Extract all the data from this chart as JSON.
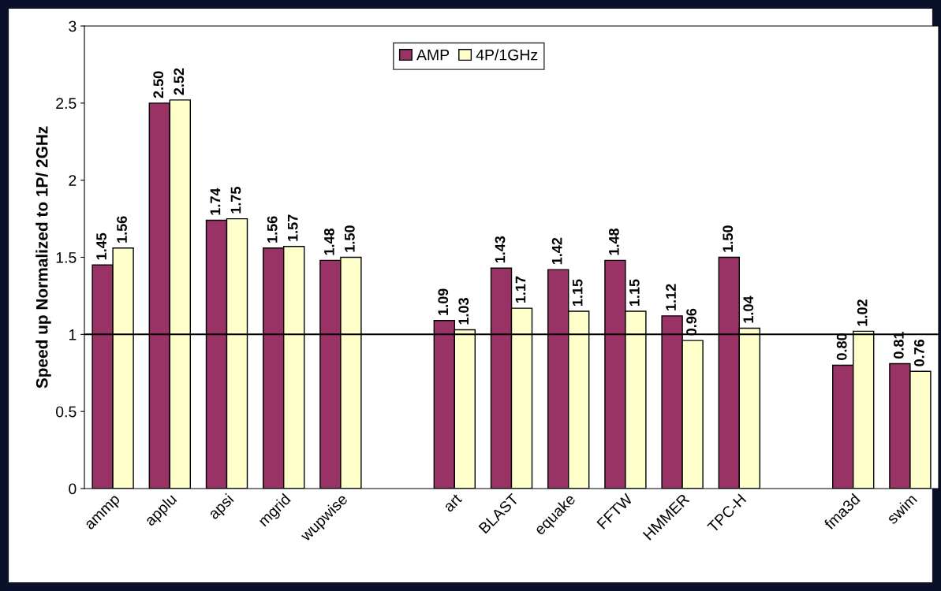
{
  "chart_data": {
    "type": "bar",
    "ylabel": "Speed up Normalized to 1P/ 2GHz",
    "categories": [
      "ammp",
      "applu",
      "apsi",
      "mgrid",
      "wupwise",
      null,
      "art",
      "BLAST",
      "equake",
      "FFTW",
      "HMMER",
      "TPC-H",
      null,
      "fma3d",
      "swim"
    ],
    "series": [
      {
        "name": "AMP",
        "color": "#993366",
        "values": [
          1.45,
          2.5,
          1.74,
          1.56,
          1.48,
          null,
          1.09,
          1.43,
          1.42,
          1.48,
          1.12,
          1.5,
          null,
          0.8,
          0.81
        ],
        "value_labels": [
          "1.45",
          "2.50",
          "1.74",
          "1.56",
          "1.48",
          null,
          "1.09",
          "1.43",
          "1.42",
          "1.48",
          "1.12",
          "1.50",
          null,
          "0.80",
          "0.81"
        ]
      },
      {
        "name": "4P/1GHz",
        "color": "#ffffcc",
        "values": [
          1.56,
          2.52,
          1.75,
          1.57,
          1.5,
          null,
          1.03,
          1.17,
          1.15,
          1.15,
          0.96,
          1.04,
          null,
          1.02,
          0.76
        ],
        "value_labels": [
          "1.56",
          "2.52",
          "1.75",
          "1.57",
          "1.50",
          null,
          "1.03",
          "1.17",
          "1.15",
          "1.15",
          "0.96",
          "1.04",
          null,
          "1.02",
          "0.76"
        ]
      }
    ],
    "ylim": [
      0,
      3
    ],
    "yticks": [
      0,
      0.5,
      1,
      1.5,
      2,
      2.5,
      3
    ],
    "ref_lines": [
      {
        "axis": "y",
        "value": 1,
        "color": "#000000"
      }
    ],
    "legend": "top",
    "grid": false
  }
}
